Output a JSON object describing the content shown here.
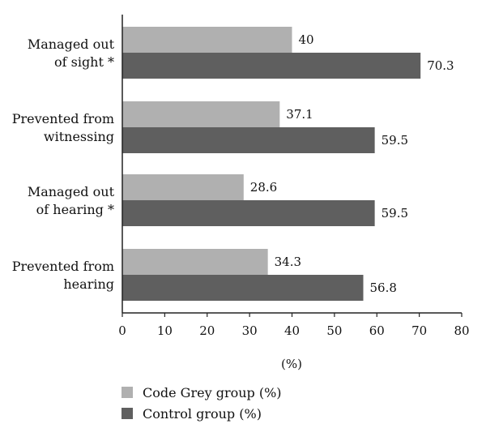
{
  "chart_data": {
    "type": "bar",
    "orientation": "horizontal",
    "categories": [
      [
        "Managed out",
        "of sight *"
      ],
      [
        "Prevented from",
        "witnessing"
      ],
      [
        "Managed out",
        "of hearing *"
      ],
      [
        "Prevented from",
        "hearing"
      ]
    ],
    "series": [
      {
        "name": "Code Grey group (%)",
        "color": "#b0b0b0",
        "values": [
          40,
          37.1,
          28.6,
          34.3
        ]
      },
      {
        "name": "Control group (%)",
        "color": "#5f5f5f",
        "values": [
          70.3,
          59.5,
          59.5,
          56.8
        ]
      }
    ],
    "xlabel": "(%)",
    "ylabel": "",
    "xlim": [
      0,
      80
    ],
    "xticks": [
      0,
      10,
      20,
      30,
      40,
      50,
      60,
      70,
      80
    ],
    "grid": false,
    "legend_position": "bottom-left"
  }
}
